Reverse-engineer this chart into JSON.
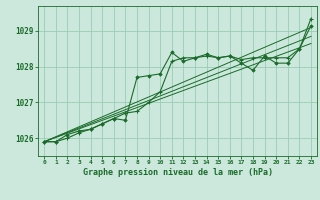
{
  "title": "Graphe pression niveau de la mer (hPa)",
  "background_color": "#cce8dc",
  "plot_bg_color": "#cce8dc",
  "grid_color": "#99ccb8",
  "line_color": "#1a6b2a",
  "xlim": [
    -0.5,
    23.5
  ],
  "ylim": [
    1025.5,
    1029.7
  ],
  "xticks": [
    0,
    1,
    2,
    3,
    4,
    5,
    6,
    7,
    8,
    9,
    10,
    11,
    12,
    13,
    14,
    15,
    16,
    17,
    18,
    19,
    20,
    21,
    22,
    23
  ],
  "yticks": [
    1026,
    1027,
    1028,
    1029
  ],
  "series1": [
    1025.9,
    1025.9,
    1026.0,
    1026.15,
    1026.25,
    1026.4,
    1026.55,
    1026.7,
    1026.75,
    1027.0,
    1027.3,
    1028.15,
    1028.25,
    1028.25,
    1028.3,
    1028.25,
    1028.3,
    1028.2,
    1028.25,
    1028.25,
    1028.25,
    1028.25,
    1028.5,
    1029.35
  ],
  "series2": [
    1025.9,
    1025.9,
    1026.1,
    1026.2,
    1026.25,
    1026.4,
    1026.55,
    1026.5,
    1027.7,
    1027.75,
    1027.8,
    1028.4,
    1028.15,
    1028.25,
    1028.35,
    1028.25,
    1028.3,
    1028.1,
    1027.9,
    1028.3,
    1028.1,
    1028.1,
    1028.5,
    1029.15
  ],
  "trend1_x": [
    0,
    23
  ],
  "trend1_y": [
    1025.9,
    1029.1
  ],
  "trend2_x": [
    0,
    23
  ],
  "trend2_y": [
    1025.9,
    1028.85
  ],
  "trend3_x": [
    0,
    23
  ],
  "trend3_y": [
    1025.9,
    1028.65
  ]
}
